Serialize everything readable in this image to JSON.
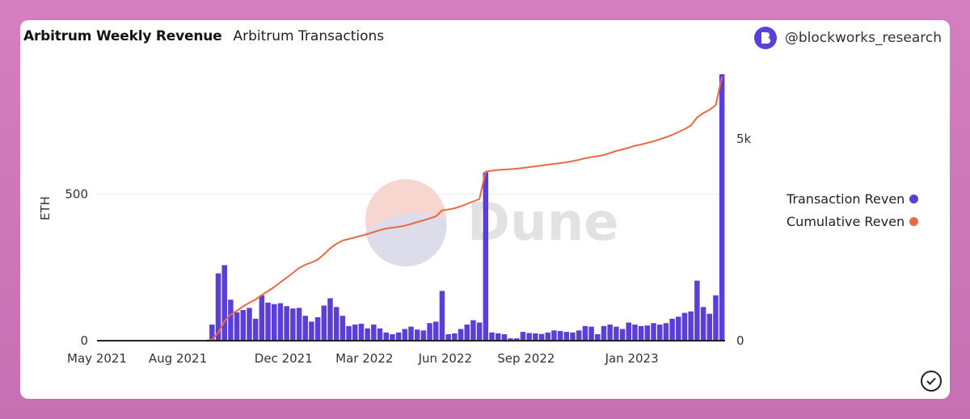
{
  "header": {
    "title": "Arbitrum Weekly Revenue",
    "subtitle": "Arbitrum Transactions",
    "author": "@blockworks_research"
  },
  "watermark": "Dune",
  "legend": [
    {
      "label": "Transaction Reven",
      "color": "#5b3ed6"
    },
    {
      "label": "Cumulative Reven",
      "color": "#ec6a43"
    }
  ],
  "colors": {
    "bar": "#5b3ed6",
    "line": "#ec6a43"
  },
  "chart_data": {
    "type": "bar",
    "ylabel": "ETH",
    "x_ticks": [
      "May 2021",
      "Aug 2021",
      "Dec 2021",
      "Mar 2022",
      "Jun 2022",
      "Sep 2022",
      "Jan 2023"
    ],
    "y_ticks": [
      "0",
      "500"
    ],
    "y2_ticks": [
      "0",
      "5k"
    ],
    "ylim": [
      0,
      910
    ],
    "y2lim": [
      0,
      6600
    ],
    "grid": true,
    "legend_position": "right",
    "x_start": "2021-05-03",
    "series": [
      {
        "name": "Transaction Reven",
        "kind": "bar",
        "axis": "left",
        "values": [
          0,
          0,
          0,
          0,
          0,
          0,
          0,
          0,
          0,
          0,
          0,
          0,
          0,
          0,
          0,
          0,
          0,
          0,
          55,
          230,
          258,
          140,
          97,
          105,
          112,
          75,
          155,
          130,
          125,
          128,
          118,
          110,
          112,
          85,
          65,
          80,
          120,
          145,
          115,
          85,
          50,
          55,
          58,
          42,
          55,
          42,
          28,
          22,
          28,
          40,
          48,
          38,
          35,
          60,
          65,
          170,
          22,
          25,
          40,
          55,
          70,
          62,
          575,
          28,
          25,
          22,
          8,
          8,
          30,
          26,
          25,
          23,
          28,
          35,
          33,
          30,
          28,
          35,
          50,
          48,
          22,
          50,
          55,
          48,
          40,
          62,
          55,
          50,
          52,
          60,
          55,
          60,
          75,
          82,
          95,
          100,
          205,
          115,
          92,
          155,
          910
        ]
      },
      {
        "name": "Cumulative Reven",
        "kind": "line",
        "axis": "right",
        "values": [
          0,
          0,
          0,
          0,
          0,
          0,
          0,
          0,
          0,
          0,
          0,
          0,
          0,
          0,
          0,
          0,
          0,
          0,
          30,
          200,
          480,
          650,
          740,
          850,
          940,
          1020,
          1130,
          1230,
          1330,
          1450,
          1560,
          1680,
          1800,
          1880,
          1940,
          2010,
          2140,
          2290,
          2400,
          2480,
          2520,
          2560,
          2600,
          2640,
          2690,
          2740,
          2780,
          2800,
          2820,
          2850,
          2890,
          2940,
          2980,
          3030,
          3080,
          3230,
          3250,
          3280,
          3330,
          3390,
          3450,
          3510,
          4190,
          4210,
          4230,
          4240,
          4250,
          4260,
          4280,
          4300,
          4320,
          4340,
          4360,
          4380,
          4400,
          4420,
          4450,
          4480,
          4520,
          4550,
          4570,
          4600,
          4650,
          4700,
          4740,
          4780,
          4830,
          4860,
          4900,
          4940,
          4990,
          5040,
          5100,
          5170,
          5240,
          5330,
          5530,
          5640,
          5720,
          5840,
          6540
        ]
      }
    ]
  }
}
